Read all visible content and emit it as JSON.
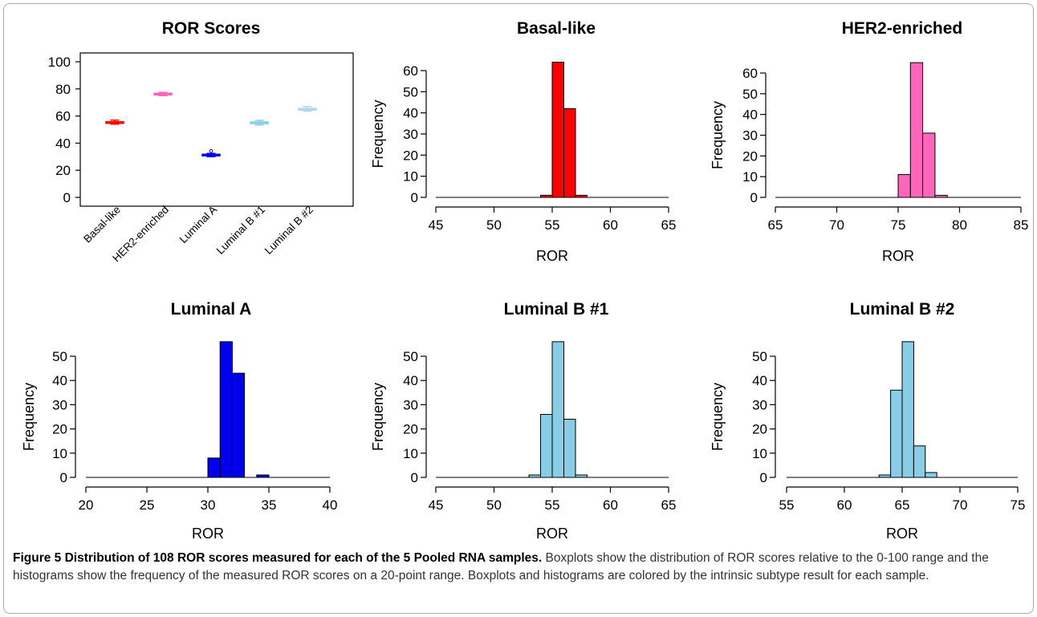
{
  "caption": {
    "label": "Figure 5",
    "title": "Distribution of 108 ROR scores measured for each of the 5 Pooled RNA samples.",
    "body": "Boxplots show the distribution of ROR scores relative to the 0-100 range and the histograms show the frequency of the measured ROR scores on a 20-point range. Boxplots and histograms are colored by the intrinsic subtype result for each sample."
  },
  "chart_data": [
    {
      "type": "boxplot",
      "title": "ROR Scores",
      "xlabel": "",
      "ylabel": "",
      "ylim": [
        0,
        100
      ],
      "yticks": [
        0,
        20,
        40,
        60,
        80,
        100
      ],
      "categories": [
        "Basal-like",
        "HER2-enriched",
        "Luminal A",
        "Luminal B #1",
        "Luminal B #2"
      ],
      "colors": [
        "#ff0000",
        "#ff66bb",
        "#0000ee",
        "#87cde6",
        "#add8e6"
      ],
      "boxes": [
        {
          "q1": 54.6,
          "median": 55.2,
          "q3": 55.8,
          "whisker_low": 54.0,
          "whisker_high": 57.0,
          "outliers": []
        },
        {
          "q1": 75.6,
          "median": 76.2,
          "q3": 76.8,
          "whisker_low": 75.0,
          "whisker_high": 77.4,
          "outliers": []
        },
        {
          "q1": 30.6,
          "median": 31.2,
          "q3": 31.8,
          "whisker_low": 30.0,
          "whisker_high": 32.4,
          "outliers": [
            34.2
          ]
        },
        {
          "q1": 54.4,
          "median": 55.0,
          "q3": 55.6,
          "whisker_low": 53.4,
          "whisker_high": 56.8,
          "outliers": []
        },
        {
          "q1": 64.4,
          "median": 65.0,
          "q3": 65.6,
          "whisker_low": 63.6,
          "whisker_high": 67.0,
          "outliers": []
        }
      ]
    },
    {
      "type": "histogram",
      "title": "Basal-like",
      "xlabel": "ROR",
      "ylabel": "Frequency",
      "color": "#ff0000",
      "xlim": [
        45,
        65
      ],
      "xticks": [
        45,
        50,
        55,
        60,
        65
      ],
      "yticks": [
        0,
        10,
        20,
        30,
        40,
        50,
        60
      ],
      "bins": [
        [
          54,
          55,
          1
        ],
        [
          55,
          56,
          64
        ],
        [
          56,
          57,
          42
        ],
        [
          57,
          58,
          1
        ]
      ]
    },
    {
      "type": "histogram",
      "title": "HER2-enriched",
      "xlabel": "ROR",
      "ylabel": "Frequency",
      "color": "#ff66bb",
      "xlim": [
        65,
        85
      ],
      "xticks": [
        65,
        70,
        75,
        80,
        85
      ],
      "yticks": [
        0,
        10,
        20,
        30,
        40,
        50,
        60
      ],
      "bins": [
        [
          75,
          76,
          11
        ],
        [
          76,
          77,
          65
        ],
        [
          77,
          78,
          31
        ],
        [
          78,
          79,
          1
        ]
      ]
    },
    {
      "type": "histogram",
      "title": "Luminal A",
      "xlabel": "ROR",
      "ylabel": "Frequency",
      "color": "#0000ee",
      "xlim": [
        20,
        40
      ],
      "xticks": [
        20,
        25,
        30,
        35,
        40
      ],
      "yticks": [
        0,
        10,
        20,
        30,
        40,
        50
      ],
      "bins": [
        [
          30,
          31,
          8
        ],
        [
          31,
          32,
          56
        ],
        [
          32,
          33,
          43
        ],
        [
          34,
          35,
          1
        ]
      ]
    },
    {
      "type": "histogram",
      "title": "Luminal B #1",
      "xlabel": "ROR",
      "ylabel": "Frequency",
      "color": "#87cde6",
      "xlim": [
        45,
        65
      ],
      "xticks": [
        45,
        50,
        55,
        60,
        65
      ],
      "yticks": [
        0,
        10,
        20,
        30,
        40,
        50
      ],
      "bins": [
        [
          53,
          54,
          1
        ],
        [
          54,
          55,
          26
        ],
        [
          55,
          56,
          56
        ],
        [
          56,
          57,
          24
        ],
        [
          57,
          58,
          1
        ]
      ]
    },
    {
      "type": "histogram",
      "title": "Luminal B #2",
      "xlabel": "ROR",
      "ylabel": "Frequency",
      "color": "#87cde6",
      "xlim": [
        55,
        75
      ],
      "xticks": [
        55,
        60,
        65,
        70,
        75
      ],
      "yticks": [
        0,
        10,
        20,
        30,
        40,
        50
      ],
      "bins": [
        [
          63,
          64,
          1
        ],
        [
          64,
          65,
          36
        ],
        [
          65,
          66,
          56
        ],
        [
          66,
          67,
          13
        ],
        [
          67,
          68,
          2
        ]
      ]
    }
  ]
}
